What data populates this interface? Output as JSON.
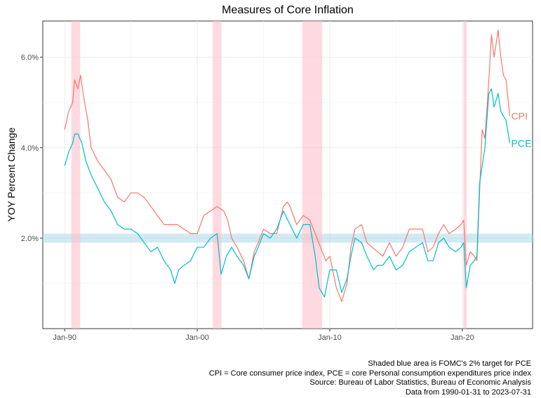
{
  "chart_data": {
    "type": "line",
    "title": "Measures of Core Inflation",
    "xlabel": "",
    "ylabel": "YOY Percent Change",
    "x_range": [
      "1990-01-31",
      "2023-07-31"
    ],
    "ylim": [
      0.0,
      6.8
    ],
    "x_ticks": [
      {
        "label": "Jan-90",
        "value": 1990.0
      },
      {
        "label": "Jan-00",
        "value": 2000.0
      },
      {
        "label": "Jan-10",
        "value": 2010.0
      },
      {
        "label": "Jan-20",
        "value": 2020.0
      }
    ],
    "y_ticks": [
      {
        "label": "2.0%",
        "value": 2.0
      },
      {
        "label": "4.0%",
        "value": 4.0
      },
      {
        "label": "6.0%",
        "value": 6.0
      }
    ],
    "grid": true,
    "target_band": {
      "low": 1.9,
      "high": 2.1,
      "color": "#add8e6"
    },
    "recessions": [
      {
        "start": 1990.5,
        "end": 1991.17
      },
      {
        "start": 2001.17,
        "end": 2001.83
      },
      {
        "start": 2007.92,
        "end": 2009.42
      },
      {
        "start": 2020.08,
        "end": 2020.33
      }
    ],
    "recession_color": "#ffc0cb",
    "series": [
      {
        "name": "CPI",
        "color": "#f8766d",
        "points": [
          [
            1990.0,
            4.4
          ],
          [
            1990.3,
            4.8
          ],
          [
            1990.6,
            5.0
          ],
          [
            1990.75,
            5.5
          ],
          [
            1991.0,
            5.3
          ],
          [
            1991.2,
            5.6
          ],
          [
            1991.5,
            5.0
          ],
          [
            1991.75,
            4.6
          ],
          [
            1992.0,
            4.0
          ],
          [
            1992.5,
            3.7
          ],
          [
            1993.0,
            3.5
          ],
          [
            1993.5,
            3.3
          ],
          [
            1994.0,
            2.9
          ],
          [
            1994.5,
            2.8
          ],
          [
            1995.0,
            3.0
          ],
          [
            1995.5,
            3.0
          ],
          [
            1996.0,
            2.9
          ],
          [
            1996.5,
            2.7
          ],
          [
            1997.0,
            2.5
          ],
          [
            1997.5,
            2.3
          ],
          [
            1998.0,
            2.3
          ],
          [
            1998.5,
            2.3
          ],
          [
            1999.0,
            2.2
          ],
          [
            1999.5,
            2.1
          ],
          [
            2000.0,
            2.1
          ],
          [
            2000.5,
            2.5
          ],
          [
            2001.0,
            2.6
          ],
          [
            2001.5,
            2.7
          ],
          [
            2002.0,
            2.6
          ],
          [
            2002.3,
            2.4
          ],
          [
            2002.6,
            2.0
          ],
          [
            2003.0,
            1.8
          ],
          [
            2003.5,
            1.5
          ],
          [
            2003.9,
            1.1
          ],
          [
            2004.3,
            1.7
          ],
          [
            2004.6,
            1.9
          ],
          [
            2005.0,
            2.2
          ],
          [
            2005.5,
            2.1
          ],
          [
            2006.0,
            2.1
          ],
          [
            2006.5,
            2.7
          ],
          [
            2006.8,
            2.8
          ],
          [
            2007.0,
            2.7
          ],
          [
            2007.5,
            2.3
          ],
          [
            2008.0,
            2.5
          ],
          [
            2008.5,
            2.4
          ],
          [
            2008.9,
            2.1
          ],
          [
            2009.3,
            1.8
          ],
          [
            2009.7,
            1.5
          ],
          [
            2010.0,
            1.6
          ],
          [
            2010.5,
            0.9
          ],
          [
            2010.9,
            0.6
          ],
          [
            2011.3,
            1.0
          ],
          [
            2011.6,
            1.8
          ],
          [
            2011.9,
            2.2
          ],
          [
            2012.4,
            2.3
          ],
          [
            2012.8,
            1.9
          ],
          [
            2013.2,
            1.8
          ],
          [
            2013.6,
            1.7
          ],
          [
            2014.0,
            1.6
          ],
          [
            2014.5,
            1.9
          ],
          [
            2015.0,
            1.6
          ],
          [
            2015.5,
            1.8
          ],
          [
            2016.0,
            2.2
          ],
          [
            2016.5,
            2.2
          ],
          [
            2017.0,
            2.2
          ],
          [
            2017.4,
            1.7
          ],
          [
            2017.8,
            1.8
          ],
          [
            2018.2,
            2.1
          ],
          [
            2018.6,
            2.3
          ],
          [
            2019.0,
            2.1
          ],
          [
            2019.5,
            2.2
          ],
          [
            2019.9,
            2.3
          ],
          [
            2020.1,
            2.4
          ],
          [
            2020.3,
            1.4
          ],
          [
            2020.6,
            1.7
          ],
          [
            2020.9,
            1.6
          ],
          [
            2021.1,
            1.5
          ],
          [
            2021.3,
            3.0
          ],
          [
            2021.5,
            4.4
          ],
          [
            2021.7,
            4.2
          ],
          [
            2022.0,
            5.5
          ],
          [
            2022.2,
            6.5
          ],
          [
            2022.4,
            6.0
          ],
          [
            2022.7,
            6.6
          ],
          [
            2022.9,
            6.0
          ],
          [
            2023.1,
            5.6
          ],
          [
            2023.3,
            5.5
          ],
          [
            2023.58,
            4.7
          ]
        ]
      },
      {
        "name": "PCE",
        "color": "#00bfc4",
        "points": [
          [
            1990.0,
            3.6
          ],
          [
            1990.3,
            3.9
          ],
          [
            1990.6,
            4.1
          ],
          [
            1990.75,
            4.3
          ],
          [
            1991.0,
            4.3
          ],
          [
            1991.3,
            4.1
          ],
          [
            1991.6,
            3.7
          ],
          [
            1992.0,
            3.4
          ],
          [
            1992.5,
            3.1
          ],
          [
            1993.0,
            2.8
          ],
          [
            1993.5,
            2.6
          ],
          [
            1994.0,
            2.3
          ],
          [
            1994.5,
            2.2
          ],
          [
            1995.0,
            2.2
          ],
          [
            1995.5,
            2.1
          ],
          [
            1996.0,
            1.9
          ],
          [
            1996.5,
            1.7
          ],
          [
            1997.0,
            1.8
          ],
          [
            1997.5,
            1.5
          ],
          [
            1998.0,
            1.3
          ],
          [
            1998.3,
            1.0
          ],
          [
            1998.6,
            1.3
          ],
          [
            1999.0,
            1.4
          ],
          [
            1999.5,
            1.5
          ],
          [
            2000.0,
            1.8
          ],
          [
            2000.5,
            1.8
          ],
          [
            2001.0,
            2.0
          ],
          [
            2001.5,
            2.1
          ],
          [
            2001.8,
            1.2
          ],
          [
            2002.2,
            1.6
          ],
          [
            2002.6,
            1.8
          ],
          [
            2003.0,
            1.6
          ],
          [
            2003.5,
            1.4
          ],
          [
            2003.9,
            1.1
          ],
          [
            2004.3,
            1.6
          ],
          [
            2004.6,
            1.8
          ],
          [
            2005.0,
            2.1
          ],
          [
            2005.5,
            2.0
          ],
          [
            2006.0,
            2.2
          ],
          [
            2006.5,
            2.6
          ],
          [
            2007.0,
            2.3
          ],
          [
            2007.5,
            2.0
          ],
          [
            2008.0,
            2.3
          ],
          [
            2008.5,
            2.3
          ],
          [
            2008.9,
            1.6
          ],
          [
            2009.2,
            0.9
          ],
          [
            2009.6,
            0.7
          ],
          [
            2010.0,
            1.3
          ],
          [
            2010.5,
            1.3
          ],
          [
            2010.9,
            0.8
          ],
          [
            2011.3,
            1.1
          ],
          [
            2011.6,
            1.6
          ],
          [
            2011.9,
            2.0
          ],
          [
            2012.4,
            1.9
          ],
          [
            2012.8,
            1.6
          ],
          [
            2013.3,
            1.3
          ],
          [
            2013.6,
            1.4
          ],
          [
            2014.0,
            1.4
          ],
          [
            2014.5,
            1.6
          ],
          [
            2015.0,
            1.3
          ],
          [
            2015.5,
            1.4
          ],
          [
            2016.0,
            1.7
          ],
          [
            2016.5,
            1.8
          ],
          [
            2017.0,
            1.9
          ],
          [
            2017.4,
            1.5
          ],
          [
            2017.8,
            1.5
          ],
          [
            2018.2,
            1.9
          ],
          [
            2018.6,
            2.0
          ],
          [
            2019.0,
            1.8
          ],
          [
            2019.5,
            1.7
          ],
          [
            2019.9,
            1.8
          ],
          [
            2020.1,
            1.9
          ],
          [
            2020.3,
            0.9
          ],
          [
            2020.6,
            1.4
          ],
          [
            2020.9,
            1.5
          ],
          [
            2021.1,
            1.6
          ],
          [
            2021.3,
            3.2
          ],
          [
            2021.5,
            3.6
          ],
          [
            2021.7,
            4.0
          ],
          [
            2022.0,
            5.2
          ],
          [
            2022.2,
            5.3
          ],
          [
            2022.4,
            4.9
          ],
          [
            2022.7,
            5.2
          ],
          [
            2022.9,
            4.8
          ],
          [
            2023.1,
            4.7
          ],
          [
            2023.3,
            4.6
          ],
          [
            2023.58,
            4.1
          ]
        ]
      }
    ],
    "captions": [
      "Shaded blue area is FOMC's 2% target for PCE",
      "CPI = Core consumer price index, PCE = core Personal consumption expenditures price index",
      "Source: Bureau of Labor Statistics, Bureau of Economic Analysis",
      "Data from 1990-01-31 to 2023-07-31"
    ]
  }
}
